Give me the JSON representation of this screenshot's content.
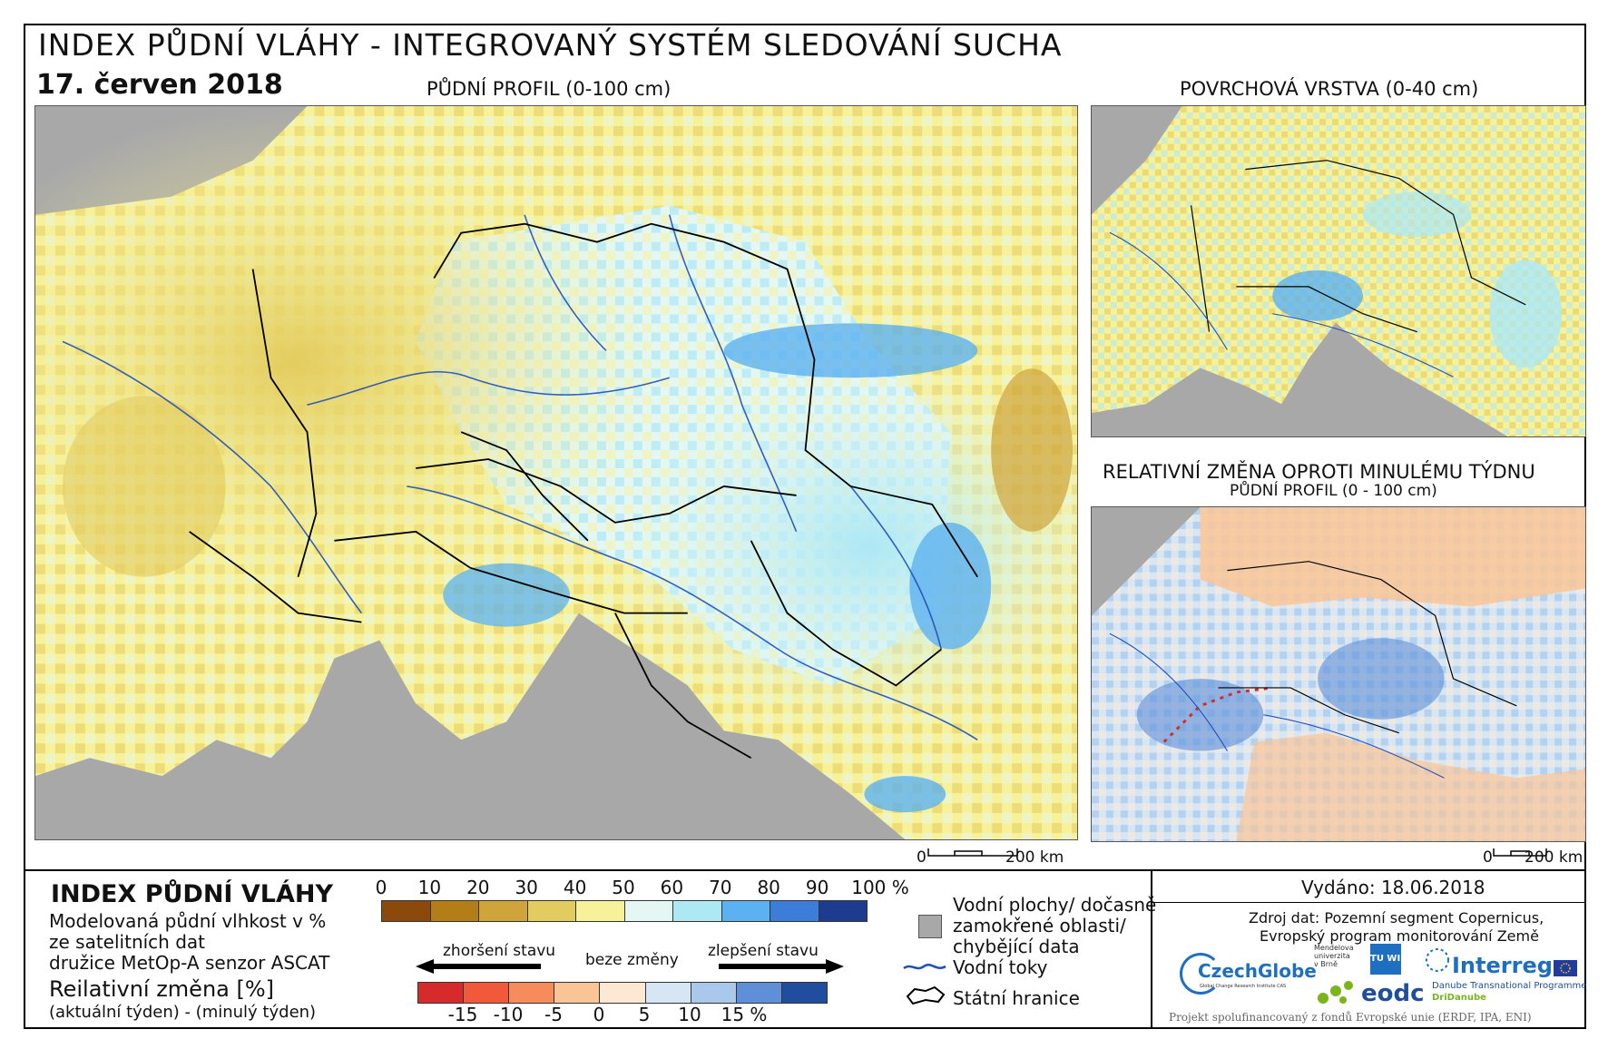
{
  "header": {
    "title": "INDEX PŮDNÍ VLÁHY - INTEGROVANÝ SYSTÉM SLEDOVÁNÍ SUCHA",
    "date": "17. červen 2018"
  },
  "maps": {
    "main_label": "PŮDNÍ PROFIL (0-100 cm)",
    "surface_label": "POVRCHOVÁ VRSTVA (0-40 cm)",
    "change_label": "RELATIVNÍ ZMĚNA OPROTI MINULÉMU TÝDNU",
    "change_sublabel": "PŮDNÍ PROFIL (0 - 100 cm)",
    "scale_zero": "0",
    "scale_km": "200 km"
  },
  "legend": {
    "title": "INDEX PŮDNÍ VLÁHY",
    "desc_line1": "Modelovaná půdní vlhkost v %",
    "desc_line2": "ze satelitních dat",
    "desc_line3": "družice MetOp-A senzor ASCAT",
    "change_title": "Reilativní změna [%]",
    "change_desc": "(aktuální týden) - (minulý týden)",
    "index_ticks": [
      "0",
      "10",
      "20",
      "30",
      "40",
      "50",
      "60",
      "70",
      "80",
      "90",
      "100 %"
    ],
    "index_colors": [
      "#8b4a0b",
      "#b37d17",
      "#cfa43a",
      "#e3cc5f",
      "#f7f29a",
      "#e4f7f2",
      "#ade8f5",
      "#5cb1f0",
      "#3b7dd8",
      "#1d3c8f"
    ],
    "worse_label": "zhoršení stavu",
    "nochange_label": "beze změny",
    "better_label": "zlepšení stavu",
    "change_ticks": [
      "-15",
      "-10",
      "-5",
      "0",
      "5",
      "10",
      "15 %"
    ],
    "change_colors": [
      "#d62b2b",
      "#f05a3a",
      "#f68b5c",
      "#f9c597",
      "#fde9d3",
      "#d7e6f5",
      "#a9c8ec",
      "#5e90d9",
      "#1f4e9e"
    ],
    "water_label_1": "Vodní plochy/ dočasně",
    "water_label_2": "zamokřené oblasti/",
    "water_label_3": "chybějící data",
    "rivers_label": "Vodní toky",
    "borders_label": "Státní hranice"
  },
  "info": {
    "issued": "Vydáno: 18.06.2018",
    "source_1": "Zdroj dat: Pozemní segment Copernicus,",
    "source_2": "Evropský program monitorování Země",
    "logo_czechglobe": "CzechGlobe",
    "logo_czechglobe_sub": "Global Change Research Institute CAS",
    "logo_mendel": "Mendelova univerzita v Brně",
    "logo_tu": "TU WIEN",
    "logo_eodc": "eodc",
    "logo_interreg": "Interreg",
    "logo_interreg_sub": "Danube Transnational Programme",
    "logo_dridanube": "DriDanube",
    "footer": "Projekt spolufinancovaný z fondů Evropské unie (ERDF, IPA, ENI)"
  },
  "colors": {
    "sea": "#a8a8a8",
    "river": "#1f4fbf",
    "border": "#000000"
  }
}
